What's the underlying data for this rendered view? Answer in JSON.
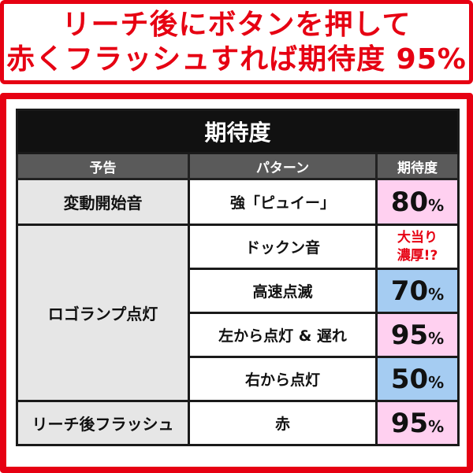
{
  "headline": {
    "line1": "リーチ後にボタンを押して",
    "line2": "赤くフラッシュすれば期待度 95%"
  },
  "table": {
    "title": "期待度",
    "columns": [
      "予告",
      "パターン",
      "期待度"
    ],
    "rows": [
      {
        "notice": "変動開始音",
        "pattern": "強「ピュイー」",
        "value": "80",
        "unit": "%",
        "cell_color": "#ffd0f0"
      },
      {
        "notice": "ロゴランプ点灯",
        "pattern": "ドックン音",
        "special_line1": "大当り",
        "special_line2": "濃厚!?"
      },
      {
        "pattern": "高速点滅",
        "value": "70",
        "unit": "%",
        "cell_color": "#a5ccf2"
      },
      {
        "pattern": "左から点灯 & 遅れ",
        "value": "95",
        "unit": "%",
        "cell_color": "#ffd0f0"
      },
      {
        "pattern": "右から点灯",
        "value": "50",
        "unit": "%",
        "cell_color": "#a5ccf2"
      },
      {
        "notice": "リーチ後フラッシュ",
        "pattern": "赤",
        "value": "95",
        "unit": "%",
        "cell_color": "#ffd0f0"
      }
    ]
  },
  "colors": {
    "accent_red": "#e60012",
    "header_black": "#111111",
    "header_gray": "#5a5a5a",
    "notice_gray": "#e6e6e6"
  }
}
